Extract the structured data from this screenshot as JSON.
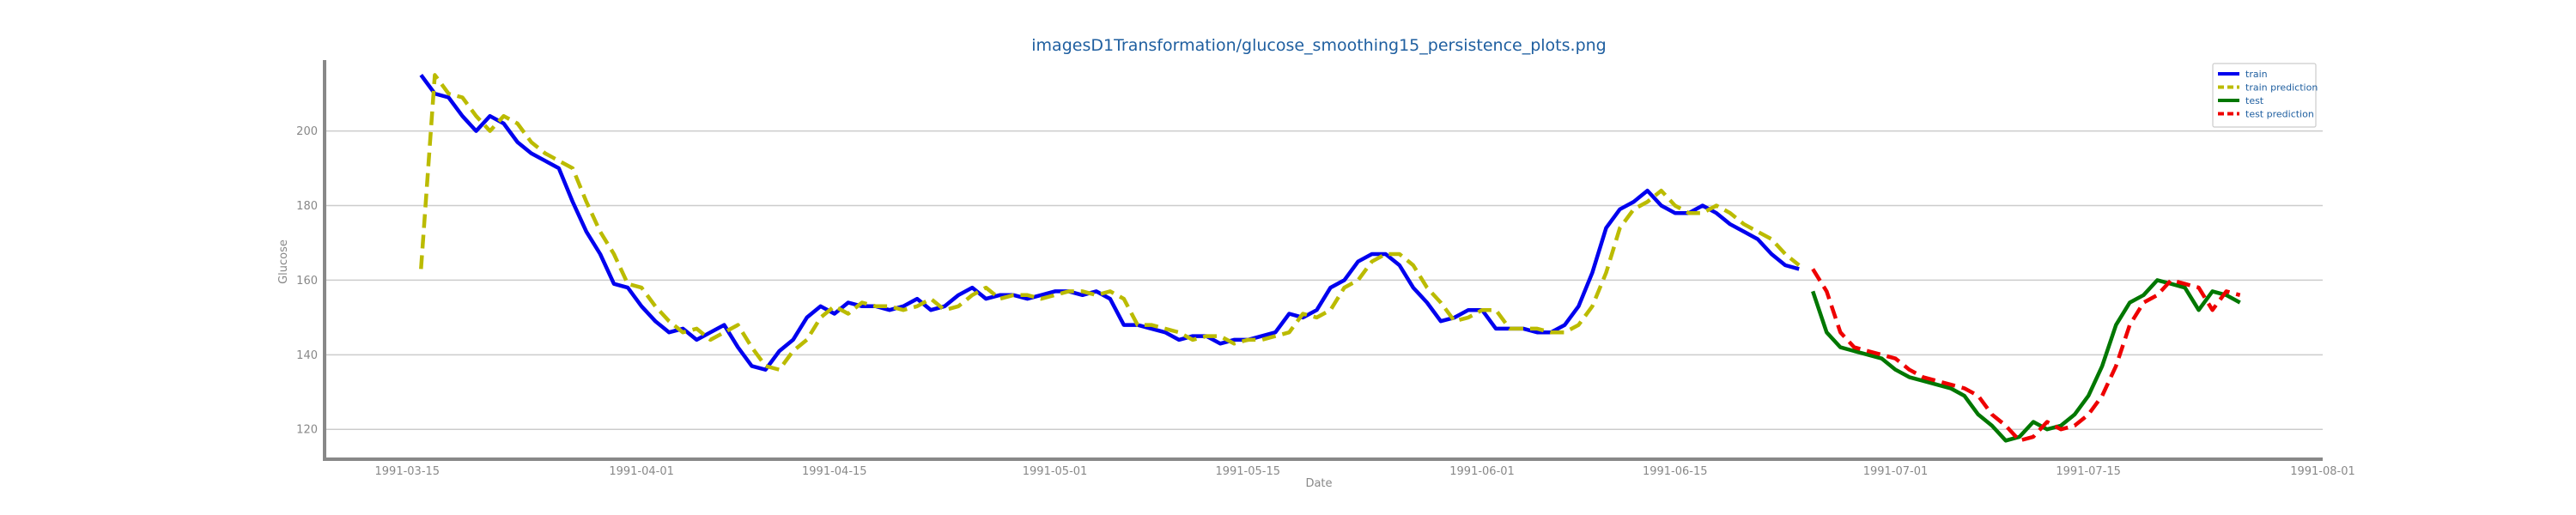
{
  "chart_data": {
    "type": "line",
    "title": "imagesD1Transformation/glucose_smoothing15_persistence_plots.png",
    "xlabel": "Date",
    "ylabel": "Glucose",
    "x_range": [
      "1991-03-09",
      "1991-08-01"
    ],
    "ylim": [
      112,
      219
    ],
    "x_ticks": [
      "1991-03-15",
      "1991-04-01",
      "1991-04-15",
      "1991-05-01",
      "1991-05-15",
      "1991-06-01",
      "1991-06-15",
      "1991-07-01",
      "1991-07-15",
      "1991-08-01"
    ],
    "y_ticks": [
      120,
      140,
      160,
      180,
      200
    ],
    "grid": "horizontal",
    "legend_position": "top-right",
    "colors": {
      "title": "#1f5fa0",
      "legend_text": "#1f5fa0",
      "grid": "#cccccc",
      "axis": "#888888"
    },
    "series": [
      {
        "name": "train",
        "color": "#0000ee",
        "style": "solid",
        "dates": [
          "1991-03-16",
          "1991-03-17",
          "1991-03-18",
          "1991-03-19",
          "1991-03-20",
          "1991-03-21",
          "1991-03-22",
          "1991-03-23",
          "1991-03-24",
          "1991-03-25",
          "1991-03-26",
          "1991-03-27",
          "1991-03-28",
          "1991-03-29",
          "1991-03-30",
          "1991-03-31",
          "1991-04-01",
          "1991-04-02",
          "1991-04-03",
          "1991-04-04",
          "1991-04-05",
          "1991-04-06",
          "1991-04-07",
          "1991-04-08",
          "1991-04-09",
          "1991-04-10",
          "1991-04-11",
          "1991-04-12",
          "1991-04-13",
          "1991-04-14",
          "1991-04-15",
          "1991-04-16",
          "1991-04-17",
          "1991-04-18",
          "1991-04-19",
          "1991-04-20",
          "1991-04-21",
          "1991-04-22",
          "1991-04-23",
          "1991-04-24",
          "1991-04-25",
          "1991-04-26",
          "1991-04-27",
          "1991-04-28",
          "1991-04-29",
          "1991-04-30",
          "1991-05-01",
          "1991-05-02",
          "1991-05-03",
          "1991-05-04",
          "1991-05-05",
          "1991-05-06",
          "1991-05-07",
          "1991-05-08",
          "1991-05-09",
          "1991-05-10",
          "1991-05-11",
          "1991-05-12",
          "1991-05-13",
          "1991-05-14",
          "1991-05-15",
          "1991-05-16",
          "1991-05-17",
          "1991-05-18",
          "1991-05-19",
          "1991-05-20",
          "1991-05-21",
          "1991-05-22",
          "1991-05-23",
          "1991-05-24",
          "1991-05-25",
          "1991-05-26",
          "1991-05-27",
          "1991-05-28",
          "1991-05-29",
          "1991-05-30",
          "1991-05-31",
          "1991-06-01",
          "1991-06-02",
          "1991-06-03",
          "1991-06-04",
          "1991-06-05",
          "1991-06-06",
          "1991-06-07",
          "1991-06-08",
          "1991-06-09",
          "1991-06-10",
          "1991-06-11",
          "1991-06-12",
          "1991-06-13",
          "1991-06-14",
          "1991-06-15",
          "1991-06-16",
          "1991-06-17",
          "1991-06-18",
          "1991-06-19",
          "1991-06-20",
          "1991-06-21",
          "1991-06-22",
          "1991-06-23",
          "1991-06-24"
        ],
        "values": [
          215,
          210,
          209,
          204,
          200,
          204,
          202,
          197,
          194,
          192,
          190,
          181,
          173,
          167,
          159,
          158,
          153,
          149,
          146,
          147,
          144,
          146,
          148,
          142,
          137,
          136,
          141,
          144,
          150,
          153,
          151,
          154,
          153,
          153,
          152,
          153,
          155,
          152,
          153,
          156,
          158,
          155,
          156,
          156,
          155,
          156,
          157,
          157,
          156,
          157,
          155,
          148,
          148,
          147,
          146,
          144,
          145,
          145,
          143,
          144,
          144,
          145,
          146,
          151,
          150,
          152,
          158,
          160,
          165,
          167,
          167,
          164,
          158,
          154,
          149,
          150,
          152,
          152,
          147,
          147,
          147,
          146,
          146,
          148,
          153,
          162,
          174,
          179,
          181,
          184,
          180,
          178,
          178,
          180,
          178,
          175,
          173,
          171,
          167,
          164,
          163
        ]
      },
      {
        "name": "train prediction",
        "color": "#bbbb00",
        "style": "dashed",
        "dates": [
          "1991-03-16",
          "1991-03-17",
          "1991-03-18",
          "1991-03-19",
          "1991-03-20",
          "1991-03-21",
          "1991-03-22",
          "1991-03-23",
          "1991-03-24",
          "1991-03-25",
          "1991-03-26",
          "1991-03-27",
          "1991-03-28",
          "1991-03-29",
          "1991-03-30",
          "1991-03-31",
          "1991-04-01",
          "1991-04-02",
          "1991-04-03",
          "1991-04-04",
          "1991-04-05",
          "1991-04-06",
          "1991-04-07",
          "1991-04-08",
          "1991-04-09",
          "1991-04-10",
          "1991-04-11",
          "1991-04-12",
          "1991-04-13",
          "1991-04-14",
          "1991-04-15",
          "1991-04-16",
          "1991-04-17",
          "1991-04-18",
          "1991-04-19",
          "1991-04-20",
          "1991-04-21",
          "1991-04-22",
          "1991-04-23",
          "1991-04-24",
          "1991-04-25",
          "1991-04-26",
          "1991-04-27",
          "1991-04-28",
          "1991-04-29",
          "1991-04-30",
          "1991-05-01",
          "1991-05-02",
          "1991-05-03",
          "1991-05-04",
          "1991-05-05",
          "1991-05-06",
          "1991-05-07",
          "1991-05-08",
          "1991-05-09",
          "1991-05-10",
          "1991-05-11",
          "1991-05-12",
          "1991-05-13",
          "1991-05-14",
          "1991-05-15",
          "1991-05-16",
          "1991-05-17",
          "1991-05-18",
          "1991-05-19",
          "1991-05-20",
          "1991-05-21",
          "1991-05-22",
          "1991-05-23",
          "1991-05-24",
          "1991-05-25",
          "1991-05-26",
          "1991-05-27",
          "1991-05-28",
          "1991-05-29",
          "1991-05-30",
          "1991-05-31",
          "1991-06-01",
          "1991-06-02",
          "1991-06-03",
          "1991-06-04",
          "1991-06-05",
          "1991-06-06",
          "1991-06-07",
          "1991-06-08",
          "1991-06-09",
          "1991-06-10",
          "1991-06-11",
          "1991-06-12",
          "1991-06-13",
          "1991-06-14",
          "1991-06-15",
          "1991-06-16",
          "1991-06-17",
          "1991-06-18",
          "1991-06-19",
          "1991-06-20",
          "1991-06-21",
          "1991-06-22",
          "1991-06-23",
          "1991-06-24"
        ],
        "values": [
          163,
          215,
          210,
          209,
          204,
          200,
          204,
          202,
          197,
          194,
          192,
          190,
          181,
          173,
          167,
          159,
          158,
          153,
          149,
          146,
          147,
          144,
          146,
          148,
          142,
          137,
          136,
          141,
          144,
          150,
          153,
          151,
          154,
          153,
          153,
          152,
          153,
          155,
          152,
          153,
          156,
          158,
          155,
          156,
          156,
          155,
          156,
          157,
          157,
          156,
          157,
          155,
          148,
          148,
          147,
          146,
          144,
          145,
          145,
          143,
          144,
          144,
          145,
          146,
          151,
          150,
          152,
          158,
          160,
          165,
          167,
          167,
          164,
          158,
          154,
          149,
          150,
          152,
          152,
          147,
          147,
          147,
          146,
          146,
          148,
          153,
          162,
          174,
          179,
          181,
          184,
          180,
          178,
          178,
          180,
          178,
          175,
          173,
          171,
          167,
          164
        ]
      },
      {
        "name": "test",
        "color": "#007700",
        "style": "solid",
        "dates": [
          "1991-06-25",
          "1991-06-26",
          "1991-06-27",
          "1991-06-28",
          "1991-06-29",
          "1991-06-30",
          "1991-07-01",
          "1991-07-02",
          "1991-07-03",
          "1991-07-04",
          "1991-07-05",
          "1991-07-06",
          "1991-07-07",
          "1991-07-08",
          "1991-07-09",
          "1991-07-10",
          "1991-07-11",
          "1991-07-12",
          "1991-07-13",
          "1991-07-14",
          "1991-07-15",
          "1991-07-16",
          "1991-07-17",
          "1991-07-18",
          "1991-07-19",
          "1991-07-20",
          "1991-07-21",
          "1991-07-22",
          "1991-07-23",
          "1991-07-24",
          "1991-07-25",
          "1991-07-26"
        ],
        "values": [
          157,
          146,
          142,
          141,
          140,
          139,
          136,
          134,
          133,
          132,
          131,
          129,
          124,
          121,
          117,
          118,
          122,
          120,
          121,
          124,
          129,
          137,
          148,
          154,
          156,
          160,
          159,
          158,
          152,
          157,
          156,
          154
        ]
      },
      {
        "name": "test prediction",
        "color": "#ee0000",
        "style": "dashed",
        "dates": [
          "1991-06-25",
          "1991-06-26",
          "1991-06-27",
          "1991-06-28",
          "1991-06-29",
          "1991-06-30",
          "1991-07-01",
          "1991-07-02",
          "1991-07-03",
          "1991-07-04",
          "1991-07-05",
          "1991-07-06",
          "1991-07-07",
          "1991-07-08",
          "1991-07-09",
          "1991-07-10",
          "1991-07-11",
          "1991-07-12",
          "1991-07-13",
          "1991-07-14",
          "1991-07-15",
          "1991-07-16",
          "1991-07-17",
          "1991-07-18",
          "1991-07-19",
          "1991-07-20",
          "1991-07-21",
          "1991-07-22",
          "1991-07-23",
          "1991-07-24",
          "1991-07-25",
          "1991-07-26"
        ],
        "values": [
          163,
          157,
          146,
          142,
          141,
          140,
          139,
          136,
          134,
          133,
          132,
          131,
          129,
          124,
          121,
          117,
          118,
          122,
          120,
          121,
          124,
          129,
          137,
          148,
          154,
          156,
          160,
          159,
          158,
          152,
          157,
          156
        ]
      }
    ]
  }
}
